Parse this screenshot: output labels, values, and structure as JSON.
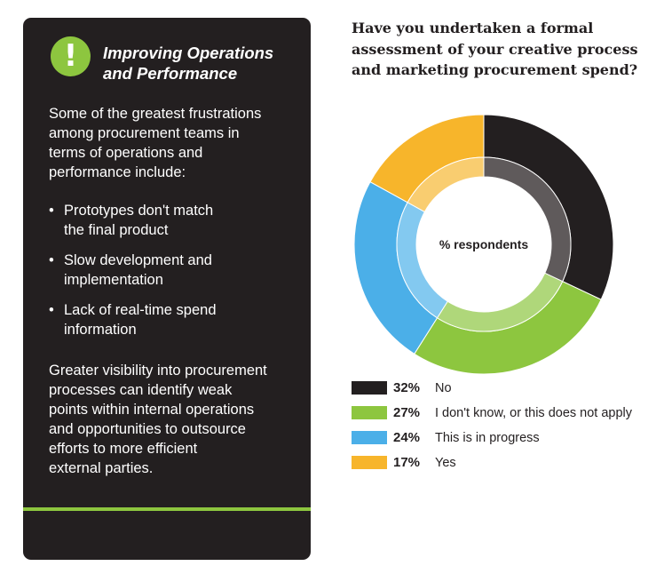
{
  "panel": {
    "badge_glyph": "!",
    "title": "Improving Operations\nand Performance",
    "intro": "Some of the greatest frustrations\namong procurement teams in\nterms of operations and\nperformance include:",
    "bullet_glyph": "•",
    "bullets": [
      "Prototypes don't match\nthe final product",
      "Slow development and\nimplementation",
      "Lack of real-time spend\ninformation"
    ],
    "outro": "Greater visibility into procurement\nprocesses can identify weak\npoints within internal operations\nand opportunities to outsource\nefforts to more efficient\nexternal parties.",
    "colors": {
      "background": "#231f20",
      "accent": "#8dc63f"
    }
  },
  "chart_data": {
    "type": "pie",
    "variant": "donut",
    "title": "Have you undertaken a formal\nassessment of your creative process\nand marketing procurement spend?",
    "center_label": "% respondents",
    "start_angle": "12 o'clock, clockwise",
    "slices": [
      {
        "value": 32,
        "display": "32%",
        "label": "No",
        "color": "#231f20",
        "inner_color": "#5f5a5b"
      },
      {
        "value": 27,
        "display": "27%",
        "label": "I don't know, or this does not apply",
        "color": "#8dc63f",
        "inner_color": "#afd77a"
      },
      {
        "value": 24,
        "display": "24%",
        "label": "This is in progress",
        "color": "#4bafe8",
        "inner_color": "#83c9f0"
      },
      {
        "value": 17,
        "display": "17%",
        "label": "Yes",
        "color": "#f7b52b",
        "inner_color": "#f9cd70"
      }
    ],
    "legend_position": "bottom-left"
  }
}
